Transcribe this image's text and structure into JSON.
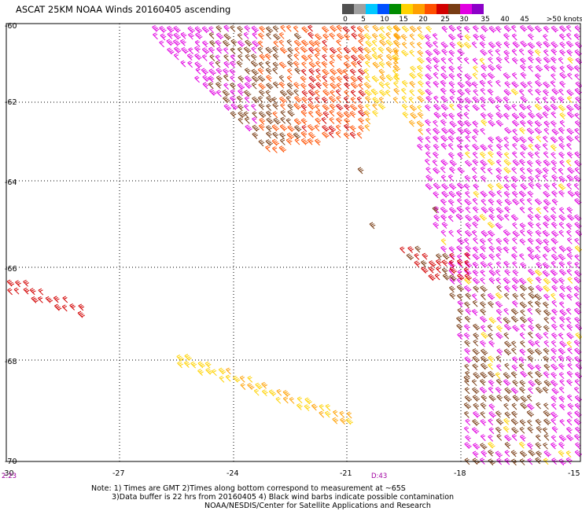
{
  "title": "ASCAT 25KM NOAA Winds 20160405 ascending",
  "legend": {
    "labels": [
      "0",
      "5",
      "10",
      "15",
      "20",
      "25",
      "30",
      "35",
      "40",
      "45",
      ">50 knots"
    ],
    "colors": [
      "#505050",
      "#a0a0a0",
      "#00c8ff",
      "#0050ff",
      "#008c00",
      "#ffd200",
      "#ffa000",
      "#ff5000",
      "#d20000",
      "#783c14",
      "#e100e1",
      "#8c00c8"
    ]
  },
  "axes": {
    "y_labels": [
      "-60",
      "-62",
      "-64",
      "-66",
      "-68",
      "-70"
    ],
    "x_labels": [
      "-30",
      "-27",
      "-24",
      "-21",
      "-18",
      "-15"
    ]
  },
  "times": [
    "2:23",
    "D:43"
  ],
  "notes": [
    "Note: 1) Times are GMT 2)Times along bottom correspond to measurement at ~65S",
    "3)Data buffer is 22 hrs from 20160405 4) Black wind barbs indicate possible contamination",
    "NOAA/NESDIS/Center for Satellite Applications and Research"
  ]
}
